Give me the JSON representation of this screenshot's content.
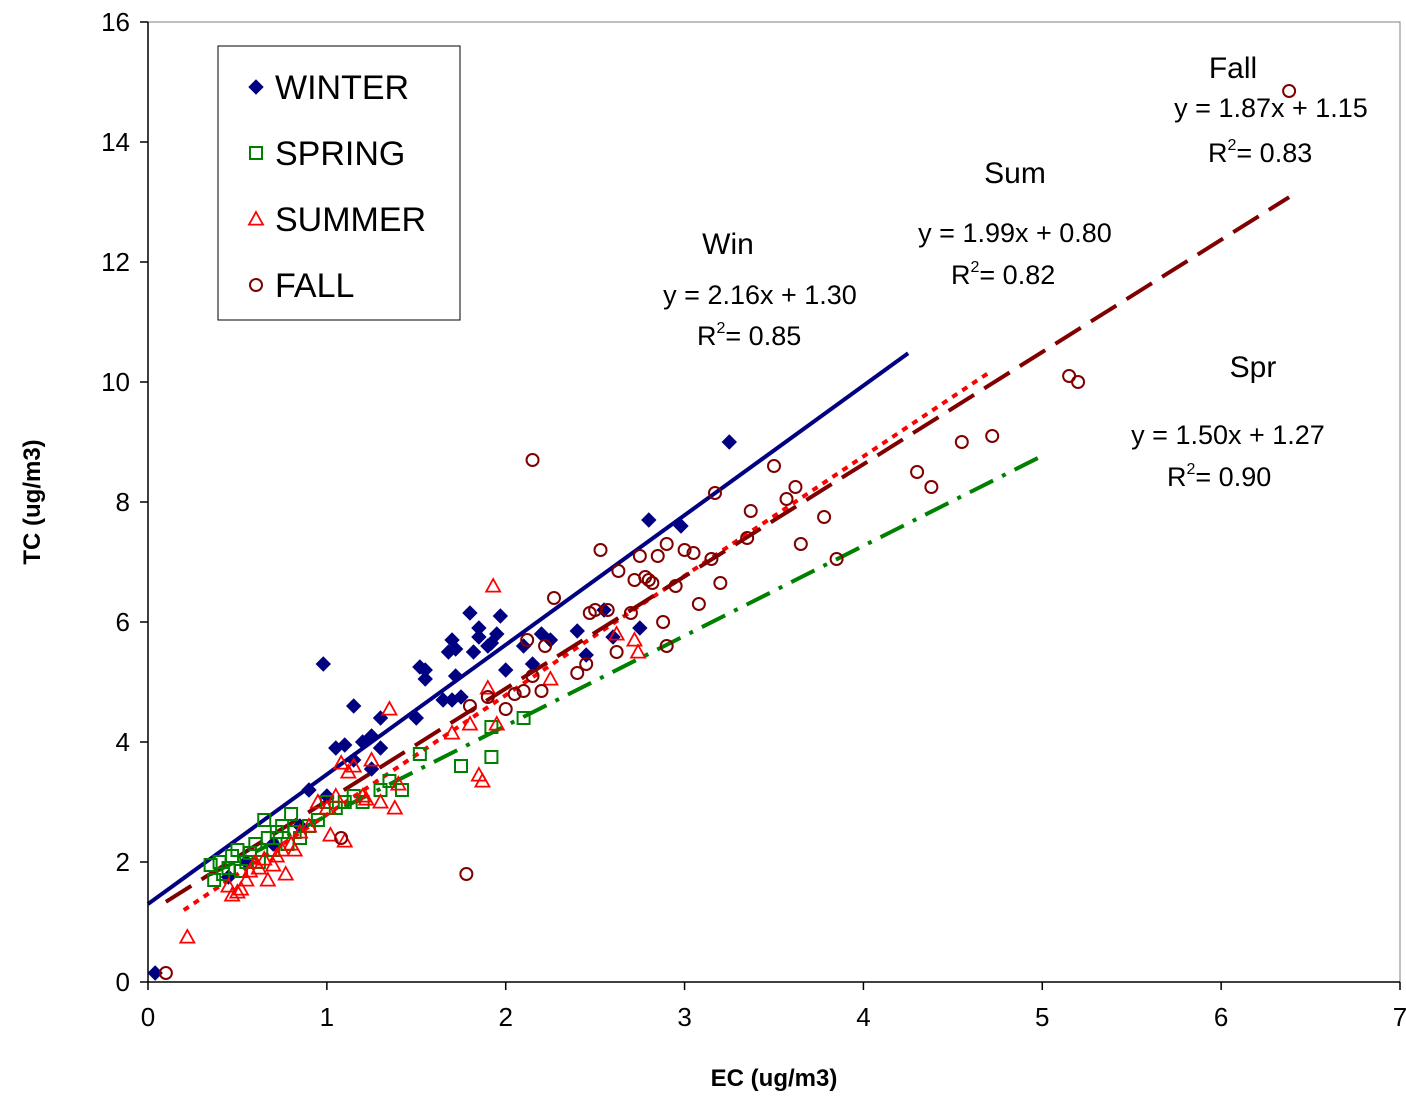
{
  "chart_data": {
    "type": "scatter",
    "xlabel": "EC (ug/m3)",
    "ylabel": "TC (ug/m3)",
    "xlim": [
      0,
      7
    ],
    "ylim": [
      0,
      16
    ],
    "xticks": [
      0,
      1,
      2,
      3,
      4,
      5,
      6,
      7
    ],
    "yticks": [
      0,
      2,
      4,
      6,
      8,
      10,
      12,
      14,
      16
    ],
    "grid": false,
    "legend_position": "top-left",
    "series": [
      {
        "name": "WINTER",
        "marker": "diamond",
        "color": "#000080",
        "points": [
          [
            0.04,
            0.15
          ],
          [
            0.45,
            1.75
          ],
          [
            0.55,
            2.0
          ],
          [
            0.7,
            2.3
          ],
          [
            0.85,
            2.6
          ],
          [
            0.9,
            3.2
          ],
          [
            1.0,
            3.1
          ],
          [
            0.98,
            5.3
          ],
          [
            1.05,
            3.9
          ],
          [
            1.1,
            3.95
          ],
          [
            1.15,
            4.6
          ],
          [
            1.15,
            3.7
          ],
          [
            1.2,
            4.0
          ],
          [
            1.25,
            4.1
          ],
          [
            1.25,
            3.55
          ],
          [
            1.3,
            4.4
          ],
          [
            1.3,
            3.9
          ],
          [
            1.5,
            4.4
          ],
          [
            1.52,
            5.25
          ],
          [
            1.55,
            5.05
          ],
          [
            1.55,
            5.2
          ],
          [
            1.65,
            4.7
          ],
          [
            1.68,
            5.5
          ],
          [
            1.7,
            5.7
          ],
          [
            1.7,
            4.7
          ],
          [
            1.72,
            5.1
          ],
          [
            1.75,
            4.75
          ],
          [
            1.72,
            5.55
          ],
          [
            1.8,
            6.15
          ],
          [
            1.82,
            5.5
          ],
          [
            1.85,
            5.75
          ],
          [
            1.85,
            5.9
          ],
          [
            1.9,
            5.6
          ],
          [
            1.92,
            5.65
          ],
          [
            1.95,
            5.8
          ],
          [
            1.97,
            6.1
          ],
          [
            2.0,
            5.2
          ],
          [
            2.1,
            5.6
          ],
          [
            2.15,
            5.3
          ],
          [
            2.2,
            5.8
          ],
          [
            2.25,
            5.7
          ],
          [
            2.45,
            5.45
          ],
          [
            2.4,
            5.85
          ],
          [
            2.55,
            6.2
          ],
          [
            2.6,
            5.75
          ],
          [
            2.75,
            5.9
          ],
          [
            2.8,
            7.7
          ],
          [
            2.98,
            7.6
          ],
          [
            3.25,
            9.0
          ]
        ]
      },
      {
        "name": "SPRING",
        "marker": "square",
        "color": "#008000",
        "points": [
          [
            0.35,
            1.95
          ],
          [
            0.37,
            1.7
          ],
          [
            0.4,
            2.0
          ],
          [
            0.42,
            1.8
          ],
          [
            0.45,
            1.9
          ],
          [
            0.47,
            2.1
          ],
          [
            0.5,
            2.2
          ],
          [
            0.52,
            1.85
          ],
          [
            0.55,
            2.0
          ],
          [
            0.57,
            2.15
          ],
          [
            0.6,
            2.3
          ],
          [
            0.62,
            2.0
          ],
          [
            0.65,
            2.7
          ],
          [
            0.67,
            2.4
          ],
          [
            0.7,
            2.2
          ],
          [
            0.72,
            2.5
          ],
          [
            0.75,
            2.6
          ],
          [
            0.78,
            2.3
          ],
          [
            0.8,
            2.8
          ],
          [
            0.82,
            2.5
          ],
          [
            0.85,
            2.4
          ],
          [
            0.9,
            2.6
          ],
          [
            0.95,
            2.7
          ],
          [
            1.0,
            3.0
          ],
          [
            1.05,
            2.9
          ],
          [
            1.1,
            3.0
          ],
          [
            1.15,
            3.1
          ],
          [
            1.2,
            3.0
          ],
          [
            1.3,
            3.2
          ],
          [
            1.35,
            3.35
          ],
          [
            1.42,
            3.2
          ],
          [
            1.52,
            3.8
          ],
          [
            1.75,
            3.6
          ],
          [
            1.92,
            3.75
          ],
          [
            1.92,
            4.25
          ],
          [
            2.1,
            4.4
          ]
        ]
      },
      {
        "name": "SUMMER",
        "marker": "triangle",
        "color": "#ff0000",
        "points": [
          [
            0.22,
            0.75
          ],
          [
            0.45,
            1.6
          ],
          [
            0.47,
            1.45
          ],
          [
            0.5,
            1.5
          ],
          [
            0.52,
            1.55
          ],
          [
            0.55,
            1.7
          ],
          [
            0.57,
            1.85
          ],
          [
            0.6,
            2.0
          ],
          [
            0.62,
            1.9
          ],
          [
            0.65,
            2.05
          ],
          [
            0.67,
            1.7
          ],
          [
            0.7,
            1.95
          ],
          [
            0.72,
            2.1
          ],
          [
            0.75,
            2.2
          ],
          [
            0.77,
            1.8
          ],
          [
            0.8,
            2.3
          ],
          [
            0.82,
            2.2
          ],
          [
            0.85,
            2.5
          ],
          [
            0.9,
            2.6
          ],
          [
            0.95,
            3.0
          ],
          [
            1.0,
            2.9
          ],
          [
            1.02,
            2.45
          ],
          [
            1.05,
            3.1
          ],
          [
            1.08,
            3.65
          ],
          [
            1.1,
            2.35
          ],
          [
            1.12,
            3.5
          ],
          [
            1.15,
            3.6
          ],
          [
            1.2,
            3.1
          ],
          [
            1.22,
            3.05
          ],
          [
            1.25,
            3.7
          ],
          [
            1.3,
            3.0
          ],
          [
            1.35,
            4.55
          ],
          [
            1.38,
            2.9
          ],
          [
            1.4,
            3.3
          ],
          [
            1.7,
            4.15
          ],
          [
            1.8,
            4.3
          ],
          [
            1.85,
            3.45
          ],
          [
            1.87,
            3.35
          ],
          [
            1.9,
            4.9
          ],
          [
            1.95,
            4.3
          ],
          [
            1.93,
            6.6
          ],
          [
            2.25,
            5.05
          ],
          [
            2.62,
            5.8
          ],
          [
            2.72,
            5.7
          ],
          [
            2.74,
            5.5
          ]
        ]
      },
      {
        "name": "FALL",
        "marker": "circle",
        "color": "#800000",
        "points": [
          [
            0.1,
            0.15
          ],
          [
            1.08,
            2.4
          ],
          [
            1.78,
            1.8
          ],
          [
            1.8,
            4.6
          ],
          [
            1.9,
            4.75
          ],
          [
            2.0,
            4.55
          ],
          [
            2.05,
            4.8
          ],
          [
            2.1,
            4.85
          ],
          [
            2.12,
            5.7
          ],
          [
            2.15,
            5.1
          ],
          [
            2.15,
            8.7
          ],
          [
            2.2,
            4.85
          ],
          [
            2.22,
            5.6
          ],
          [
            2.27,
            6.4
          ],
          [
            2.4,
            5.15
          ],
          [
            2.45,
            5.3
          ],
          [
            2.47,
            6.15
          ],
          [
            2.5,
            6.2
          ],
          [
            2.53,
            7.2
          ],
          [
            2.57,
            6.2
          ],
          [
            2.62,
            5.5
          ],
          [
            2.63,
            6.85
          ],
          [
            2.7,
            6.15
          ],
          [
            2.72,
            6.7
          ],
          [
            2.75,
            7.1
          ],
          [
            2.78,
            6.75
          ],
          [
            2.8,
            6.7
          ],
          [
            2.82,
            6.65
          ],
          [
            2.85,
            7.1
          ],
          [
            2.88,
            6.0
          ],
          [
            2.9,
            5.6
          ],
          [
            2.9,
            7.3
          ],
          [
            2.95,
            6.6
          ],
          [
            3.0,
            7.2
          ],
          [
            3.05,
            7.15
          ],
          [
            3.08,
            6.3
          ],
          [
            3.15,
            7.05
          ],
          [
            3.17,
            8.15
          ],
          [
            3.2,
            6.65
          ],
          [
            3.35,
            7.4
          ],
          [
            3.37,
            7.85
          ],
          [
            3.5,
            8.6
          ],
          [
            3.57,
            8.05
          ],
          [
            3.62,
            8.25
          ],
          [
            3.65,
            7.3
          ],
          [
            3.78,
            7.75
          ],
          [
            3.85,
            7.05
          ],
          [
            4.3,
            8.5
          ],
          [
            4.38,
            8.25
          ],
          [
            4.55,
            9.0
          ],
          [
            4.72,
            9.1
          ],
          [
            5.15,
            10.1
          ],
          [
            5.2,
            10.0
          ],
          [
            6.38,
            14.85
          ]
        ]
      }
    ],
    "trendlines": [
      {
        "series": "WINTER",
        "slope": 2.16,
        "intercept": 1.3,
        "x_range": [
          0,
          4.25
        ],
        "style": "solid",
        "color": "#000080"
      },
      {
        "series": "SPRING",
        "slope": 1.5,
        "intercept": 1.27,
        "x_range": [
          0.35,
          5.0
        ],
        "style": "dash-dot",
        "color": "#008000"
      },
      {
        "series": "SUMMER",
        "slope": 1.99,
        "intercept": 0.8,
        "x_range": [
          0.2,
          4.72
        ],
        "style": "dotted",
        "color": "#ff0000"
      },
      {
        "series": "FALL",
        "slope": 1.87,
        "intercept": 1.15,
        "x_range": [
          0.1,
          6.38
        ],
        "style": "long-dash",
        "color": "#800000"
      }
    ],
    "annotations": [
      {
        "id": "win",
        "label": "Win",
        "equation": "y = 2.16x + 1.30",
        "r2": "= 0.85"
      },
      {
        "id": "sum",
        "label": "Sum",
        "equation": "y = 1.99x + 0.80",
        "r2": "= 0.82"
      },
      {
        "id": "fall",
        "label": "Fall",
        "equation": "y = 1.87x + 1.15",
        "r2": "= 0.83"
      },
      {
        "id": "spr",
        "label": "Spr",
        "equation": "y = 1.50x + 1.27",
        "r2": "= 0.90"
      }
    ]
  }
}
